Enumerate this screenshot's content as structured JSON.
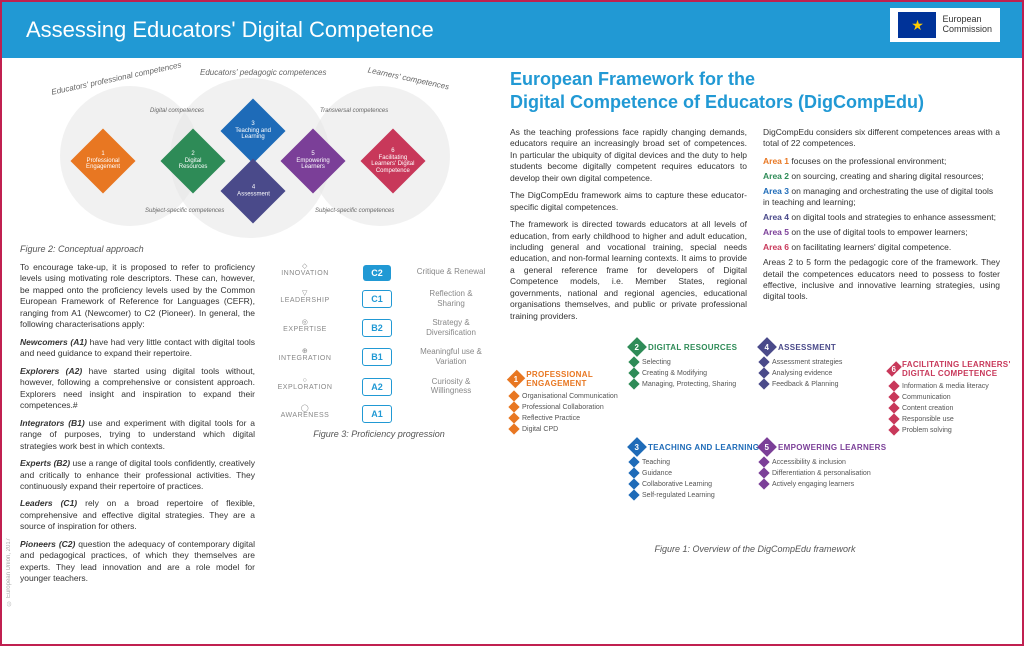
{
  "header": {
    "title": "Assessing Educators' Digital Competence",
    "logo": "European\nCommission"
  },
  "colors": {
    "header_bg": "#2199d4",
    "border": "#c02050",
    "area1": "#e87722",
    "area2": "#2e8b57",
    "area3": "#1e6bb8",
    "area4": "#4a4a8a",
    "area5": "#7b3f98",
    "area6": "#c8385a"
  },
  "venn": {
    "labels": {
      "left": "Educators' professional competences",
      "center": "Educators' pedagogic competences",
      "right": "Learners' competences"
    },
    "small_labels": {
      "tl": "Digital competences",
      "tr": "Transversal competences",
      "bl": "Subject-specific competences",
      "br": "Subject-specific competences"
    },
    "diamonds": [
      {
        "n": "1",
        "label": "Professional Engagement",
        "color": "#e87722"
      },
      {
        "n": "2",
        "label": "Digital Resources",
        "color": "#2e8b57"
      },
      {
        "n": "3",
        "label": "Teaching and Learning",
        "color": "#1e6bb8"
      },
      {
        "n": "4",
        "label": "Assessment",
        "color": "#4a4a8a"
      },
      {
        "n": "5",
        "label": "Empowering Learners",
        "color": "#7b3f98"
      },
      {
        "n": "6",
        "label": "Facilitating Learners' Digital Competence",
        "color": "#c8385a"
      }
    ],
    "caption": "Figure 2: Conceptual approach"
  },
  "intro": "To encourage take-up, it is proposed to refer to proficiency levels using motivating role descriptors. These can, however, be mapped onto the proficiency levels used by the Common European Framework of Reference for Languages (CEFR), ranging from A1 (Newcomer) to C2 (Pioneer). In general, the following characterisations apply:",
  "levels": [
    {
      "name": "Newcomers (A1)",
      "desc": "have had very little contact with digital tools and need guidance to expand their repertoire."
    },
    {
      "name": "Explorers (A2)",
      "desc": "have started using digital tools without, however, following a comprehensive or consistent approach. Explorers need insight and inspiration to expand their competences.#"
    },
    {
      "name": "Integrators (B1)",
      "desc": "use and experiment with digital tools for a range of purposes, trying to understand which digital strategies work best in which contexts."
    },
    {
      "name": "Experts (B2)",
      "desc": "use a range of digital tools confidently, creatively and critically to enhance their professional activities. They continuously expand their repertoire of practices."
    },
    {
      "name": "Leaders (C1)",
      "desc": "rely on a broad repertoire of flexible, comprehensive and effective digital strategies. They are a source of inspiration for others."
    },
    {
      "name": "Pioneers (C2)",
      "desc": "question the adequacy of contemporary digital and pedagogical practices, of which they themselves are experts. They lead innovation and are a role model for younger teachers."
    }
  ],
  "ladder": {
    "left": [
      "INNOVATION",
      "LEADERSHIP",
      "EXPERTISE",
      "INTEGRATION",
      "EXPLORATION",
      "AWARENESS"
    ],
    "codes": [
      "C2",
      "C1",
      "B2",
      "B1",
      "A2",
      "A1"
    ],
    "right": [
      "Critique & Renewal",
      "Reflection & Sharing",
      "Strategy & Diversification",
      "Meaningful use & Variation",
      "Curiosity & Willingness",
      ""
    ],
    "caption": "Figure 3: Proficiency progression"
  },
  "right": {
    "title": "European Framework for the\nDigital Competence of Educators (DigCompEdu)",
    "p1": "As the teaching professions face rapidly changing demands, educators require an increasingly broad set of competences. In particular the ubiquity of digital devices and the duty to help students become digitally competent requires educators to develop their own digital competence.",
    "p2": "The DigCompEdu framework  aims to capture these educator-specific digital competences.",
    "p3": "The framework is directed towards educators at all levels of education, from early childhood to higher and adult education, including general and vocational training, special needs education, and non-formal learning contexts. It aims to provide a general reference frame for developers of Digital Competence models, i.e. Member States, regional governments, national and regional agencies, educational organisations themselves, and public or private professional training providers.",
    "p4": "DigCompEdu considers six different competences areas with a total of 22 competences.",
    "areas": [
      {
        "label": "Area 1",
        "color": "#e87722",
        "text": "focuses on the professional environment;"
      },
      {
        "label": "Area 2",
        "color": "#2e8b57",
        "text": "on sourcing, creating and sharing digital resources;"
      },
      {
        "label": "Area 3",
        "color": "#1e6bb8",
        "text": "on managing and orchestrating the use of digital tools in teaching and learning;"
      },
      {
        "label": "Area 4",
        "color": "#4a4a8a",
        "text": "on digital tools and strategies to enhance assessment;"
      },
      {
        "label": "Area 5",
        "color": "#7b3f98",
        "text": "on the use of digital tools to empower learners;"
      },
      {
        "label": "Area 6",
        "color": "#c8385a",
        "text": "on facilitating learners' digital competence."
      }
    ],
    "p5": "Areas 2 to 5 form the pedagogic core of the framework. They detail the competences educators need to possess to foster effective, inclusive and innovative learning strategies, using digital tools."
  },
  "framework": {
    "cols": [
      {
        "n": "1",
        "title": "PROFESSIONAL ENGAGEMENT",
        "color": "#e87722",
        "items": [
          "Organisational Communication",
          "Professional Collaboration",
          "Reflective Practice",
          "Digital CPD"
        ]
      },
      {
        "n": "2",
        "title": "DIGITAL RESOURCES",
        "color": "#2e8b57",
        "items": [
          "Selecting",
          "Creating & Modifying",
          "Managing, Protecting, Sharing"
        ]
      },
      {
        "n": "3",
        "title": "TEACHING AND LEARNING",
        "color": "#1e6bb8",
        "items": [
          "Teaching",
          "Guidance",
          "Collaborative Learning",
          "Self-regulated Learning"
        ]
      },
      {
        "n": "4",
        "title": "ASSESSMENT",
        "color": "#4a4a8a",
        "items": [
          "Assessment strategies",
          "Analysing evidence",
          "Feedback & Planning"
        ]
      },
      {
        "n": "5",
        "title": "EMPOWERING LEARNERS",
        "color": "#7b3f98",
        "items": [
          "Accessibility & inclusion",
          "Differentiation & personalisation",
          "Actively engaging learners"
        ]
      },
      {
        "n": "6",
        "title": "FACILITATING LEARNERS' DIGITAL COMPETENCE",
        "color": "#c8385a",
        "items": [
          "Information & media literacy",
          "Communication",
          "Content creation",
          "Responsible use",
          "Problem solving"
        ]
      }
    ],
    "caption": "Figure 1: Overview of the DigCompEdu framework"
  },
  "copyright": "© European Union, 2017"
}
